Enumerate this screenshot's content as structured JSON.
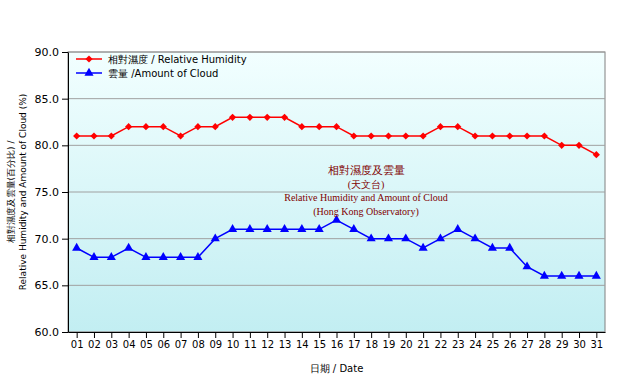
{
  "chart_data": {
    "type": "line",
    "title": [
      "相對濕度及雲量",
      "(天文台)",
      "Relative Humidity and Amount of Cloud",
      "(Hong Kong Observatory)"
    ],
    "x_label": "日期 / Date",
    "y_label": [
      "相對濕度及雲量(百分比) /",
      "Relative Humidity and Amount of Cloud (%)"
    ],
    "categories": [
      "01",
      "02",
      "03",
      "04",
      "05",
      "06",
      "07",
      "08",
      "09",
      "10",
      "11",
      "12",
      "13",
      "14",
      "15",
      "16",
      "17",
      "18",
      "19",
      "20",
      "21",
      "22",
      "23",
      "24",
      "25",
      "26",
      "27",
      "28",
      "29",
      "30",
      "31"
    ],
    "series": [
      {
        "name": "相對濕度 / Relative Humidity",
        "color": "#ff0000",
        "marker": "diamond",
        "line_style": "solid",
        "values": [
          81,
          81,
          81,
          82,
          82,
          82,
          81,
          82,
          82,
          83,
          83,
          83,
          83,
          82,
          82,
          82,
          81,
          81,
          81,
          81,
          81,
          82,
          82,
          81,
          81,
          81,
          81,
          81,
          80,
          80,
          79
        ]
      },
      {
        "name": "雲量 /Amount of Cloud",
        "color": "#0000ff",
        "marker": "triangle",
        "line_style": "solid",
        "values": [
          69,
          68,
          68,
          69,
          68,
          68,
          68,
          68,
          70,
          71,
          71,
          71,
          71,
          71,
          71,
          72,
          71,
          70,
          70,
          70,
          69,
          70,
          71,
          70,
          69,
          69,
          67,
          66,
          66,
          66,
          66
        ]
      }
    ],
    "ylim": [
      60,
      90
    ],
    "yticks": [
      {
        "value": 60,
        "label": "60.0"
      },
      {
        "value": 65,
        "label": "65.0"
      },
      {
        "value": 70,
        "label": "70.0"
      },
      {
        "value": 75,
        "label": "75.0"
      },
      {
        "value": 80,
        "label": "80.0"
      },
      {
        "value": 85,
        "label": "85.0"
      },
      {
        "value": 90,
        "label": "90.0"
      }
    ],
    "grid": true,
    "legend": "upper left"
  }
}
